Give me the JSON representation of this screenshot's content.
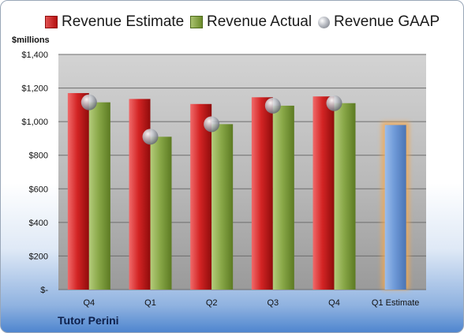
{
  "legend": {
    "estimate_label": "Revenue Estimate",
    "actual_label": "Revenue Actual",
    "gaap_label": "Revenue GAAP"
  },
  "unit_label": "$millions",
  "company_name": "Tutor Perini",
  "colors": {
    "estimate": "#c0181a",
    "actual": "#84a343",
    "gaap": "#b9bcc3",
    "forecast": "#6f9ad8",
    "forecast_glow": "#f5a84d"
  },
  "chart_data": {
    "type": "bar",
    "categories": [
      "Q4",
      "Q1",
      "Q2",
      "Q3",
      "Q4",
      "Q1 Estimate"
    ],
    "series": [
      {
        "name": "Revenue Estimate",
        "values": [
          1170,
          1135,
          1105,
          1145,
          1150,
          null
        ]
      },
      {
        "name": "Revenue Actual",
        "values": [
          1115,
          910,
          985,
          1095,
          1110,
          null
        ]
      },
      {
        "name": "Revenue GAAP",
        "values": [
          1115,
          910,
          985,
          1095,
          1110,
          null
        ]
      }
    ],
    "forecast": {
      "category": "Q1 Estimate",
      "value": 980
    },
    "y_tick_labels": [
      "$-",
      "$200",
      "$400",
      "$600",
      "$800",
      "$1,000",
      "$1,200",
      "$1,400"
    ],
    "ylim": [
      0,
      1400
    ],
    "ylabel": "$millions",
    "grid": true,
    "legend_position": "top"
  }
}
